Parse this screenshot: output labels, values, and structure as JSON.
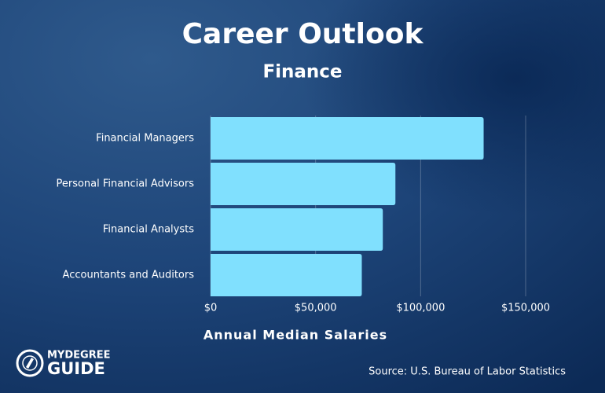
{
  "chart_data": {
    "type": "bar",
    "orientation": "horizontal",
    "title": "Career Outlook",
    "subtitle": "Finance",
    "categories": [
      "Financial Managers",
      "Personal Financial Advisors",
      "Financial Analysts",
      "Accountants and Auditors"
    ],
    "values": [
      130000,
      88000,
      82000,
      72000
    ],
    "color": "#80e0fe",
    "xlabel": "Annual Median Salaries",
    "xlim": [
      0,
      150000
    ],
    "xticks": [
      {
        "value": 0,
        "label": "$0"
      },
      {
        "value": 50000,
        "label": "$50,000"
      },
      {
        "value": 100000,
        "label": "$100,000"
      },
      {
        "value": 150000,
        "label": "$150,000"
      }
    ],
    "grid": true,
    "source": "Source: U.S. Bureau of Labor Statistics"
  },
  "logo": {
    "line1": "MYDEGREE",
    "line2": "GUIDE"
  }
}
